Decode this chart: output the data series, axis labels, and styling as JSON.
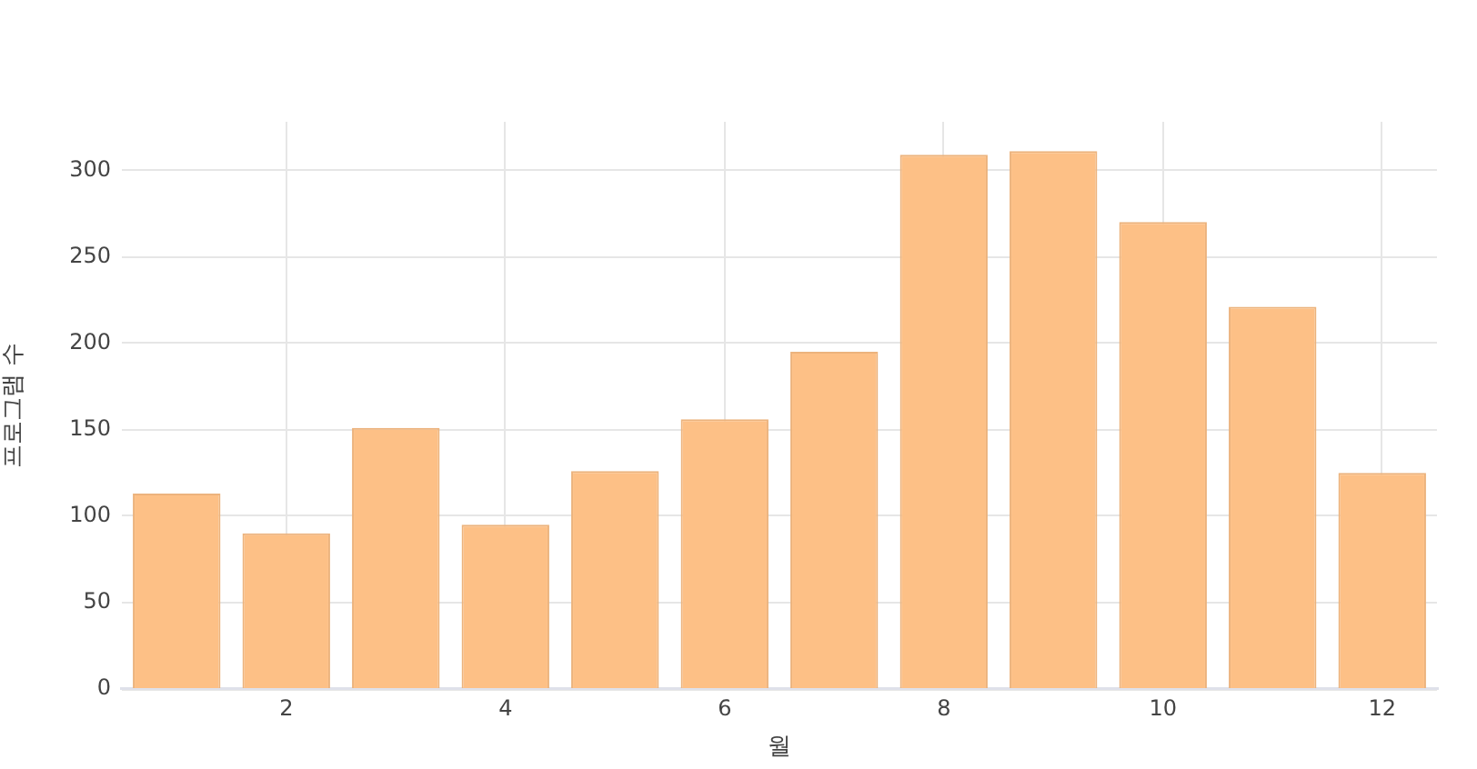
{
  "chart_data": {
    "type": "bar",
    "xlabel": "월",
    "ylabel": "프로그램 수",
    "x": [
      1,
      2,
      3,
      4,
      5,
      6,
      7,
      8,
      9,
      10,
      11,
      12
    ],
    "values": [
      113,
      90,
      151,
      95,
      126,
      156,
      195,
      309,
      311,
      270,
      221,
      125
    ],
    "color": "#fdc086",
    "xlim": [
      0.5,
      12.5
    ],
    "xticks": [
      2,
      4,
      6,
      8,
      10,
      12
    ],
    "ylim": [
      0,
      328
    ],
    "yticks": [
      0,
      50,
      100,
      150,
      200,
      250,
      300
    ],
    "grid": true
  }
}
